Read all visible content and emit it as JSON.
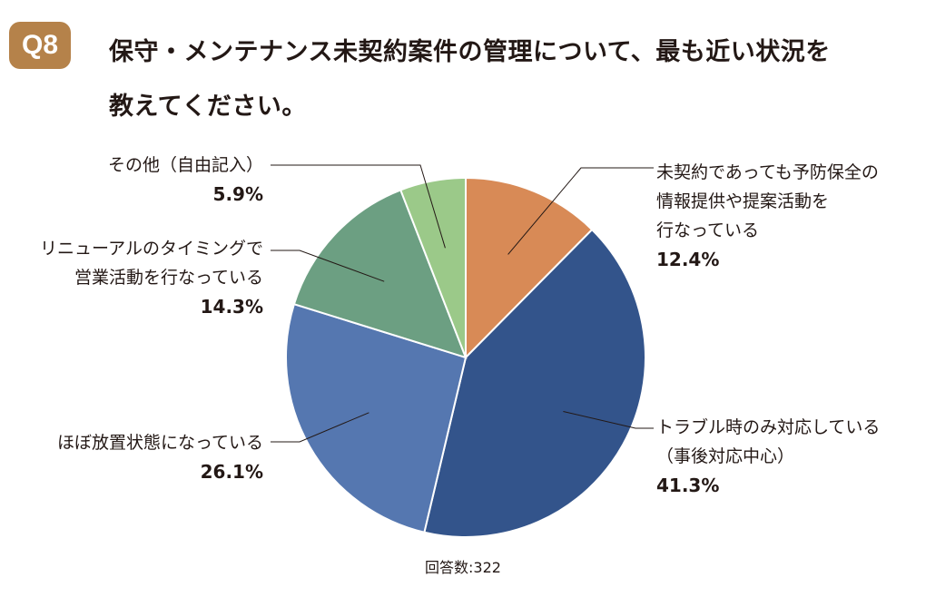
{
  "header": {
    "badge": "Q8",
    "title_line1": "保守・メンテナンス未契約案件の管理について、最も近い状況を",
    "title_line2": "教えてください。"
  },
  "chart_data": {
    "type": "pie",
    "start_angle_deg": 0,
    "direction": "clockwise",
    "slices": [
      {
        "name_lines": [
          "未契約であっても予防保全の",
          "情報提供や提案活動を",
          "行なっている"
        ],
        "value": 12.4,
        "label": "12.4%",
        "color": "#d88a56"
      },
      {
        "name_lines": [
          "トラブル時のみ対応している",
          "（事後対応中心）"
        ],
        "value": 41.3,
        "label": "41.3%",
        "color": "#33548b"
      },
      {
        "name_lines": [
          "ほぼ放置状態になっている"
        ],
        "value": 26.1,
        "label": "26.1%",
        "color": "#5577b0"
      },
      {
        "name_lines": [
          "リニューアルのタイミングで",
          "営業活動を行なっている"
        ],
        "value": 14.3,
        "label": "14.3%",
        "color": "#6c9f82"
      },
      {
        "name_lines": [
          "その他（自由記入）"
        ],
        "value": 5.9,
        "label": "5.9%",
        "color": "#9bc989"
      }
    ]
  },
  "footer": {
    "respondents": "回答数:322"
  }
}
